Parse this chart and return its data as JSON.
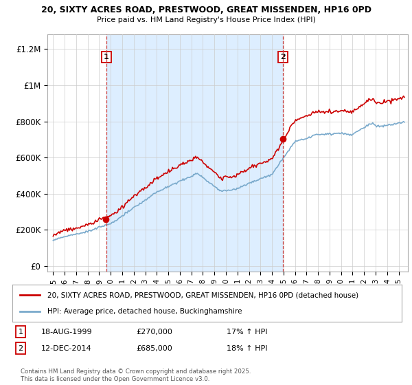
{
  "title_line1": "20, SIXTY ACRES ROAD, PRESTWOOD, GREAT MISSENDEN, HP16 0PD",
  "title_line2": "Price paid vs. HM Land Registry's House Price Index (HPI)",
  "ylabel_ticks": [
    "£0",
    "£200K",
    "£400K",
    "£600K",
    "£800K",
    "£1M",
    "£1.2M"
  ],
  "ytick_vals": [
    0,
    200000,
    400000,
    600000,
    800000,
    1000000,
    1200000
  ],
  "ylim": [
    -30000,
    1280000
  ],
  "xlim_start": 1994.5,
  "xlim_end": 2025.8,
  "purchase1_date": 1999.63,
  "purchase1_price": 270000,
  "purchase2_date": 2014.95,
  "purchase2_price": 685000,
  "red_color": "#cc0000",
  "blue_color": "#7aaacc",
  "shade_color": "#ddeeff",
  "legend_line1": "20, SIXTY ACRES ROAD, PRESTWOOD, GREAT MISSENDEN, HP16 0PD (detached house)",
  "legend_line2": "HPI: Average price, detached house, Buckinghamshire",
  "footer_text": "Contains HM Land Registry data © Crown copyright and database right 2025.\nThis data is licensed under the Open Government Licence v3.0.",
  "background_color": "#ffffff",
  "grid_color": "#cccccc"
}
